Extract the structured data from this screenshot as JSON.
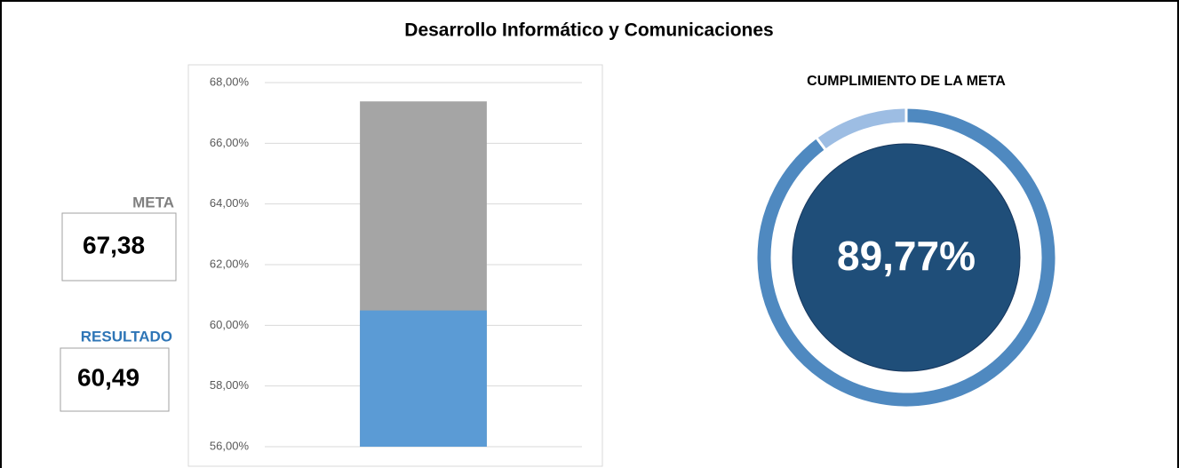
{
  "title": "Desarrollo Informático y Comunicaciones",
  "kpis": [
    {
      "label": "META",
      "text": "67,38"
    },
    {
      "label": "RESULTADO",
      "text": "60,49"
    }
  ],
  "chart_data": [
    {
      "type": "bar",
      "overlap": true,
      "categories": [
        null
      ],
      "series": [
        {
          "name": "META",
          "color": "#a5a5a5",
          "values": [
            67.38
          ]
        },
        {
          "name": "RESULTADO",
          "color": "#5b9bd5",
          "values": [
            60.49
          ]
        }
      ],
      "ylim": [
        56,
        68
      ],
      "yticks": [
        {
          "value": 56,
          "label": "56,00%"
        },
        {
          "value": 58,
          "label": "58,00%"
        },
        {
          "value": 60,
          "label": "60,00%"
        },
        {
          "value": 62,
          "label": "62,00%"
        },
        {
          "value": 64,
          "label": "64,00%"
        },
        {
          "value": 66,
          "label": "66,00%"
        },
        {
          "value": 68,
          "label": "68,00%"
        }
      ],
      "grid": true
    },
    {
      "type": "doughnut",
      "title": "CUMPLIMIENTO DE LA META",
      "values": [
        89.77,
        10.23
      ],
      "value_labels": [
        "89,77%",
        null
      ],
      "colors": [
        "#4f89c0",
        "#9dbde3"
      ],
      "center_color": "#1f4e79"
    }
  ]
}
